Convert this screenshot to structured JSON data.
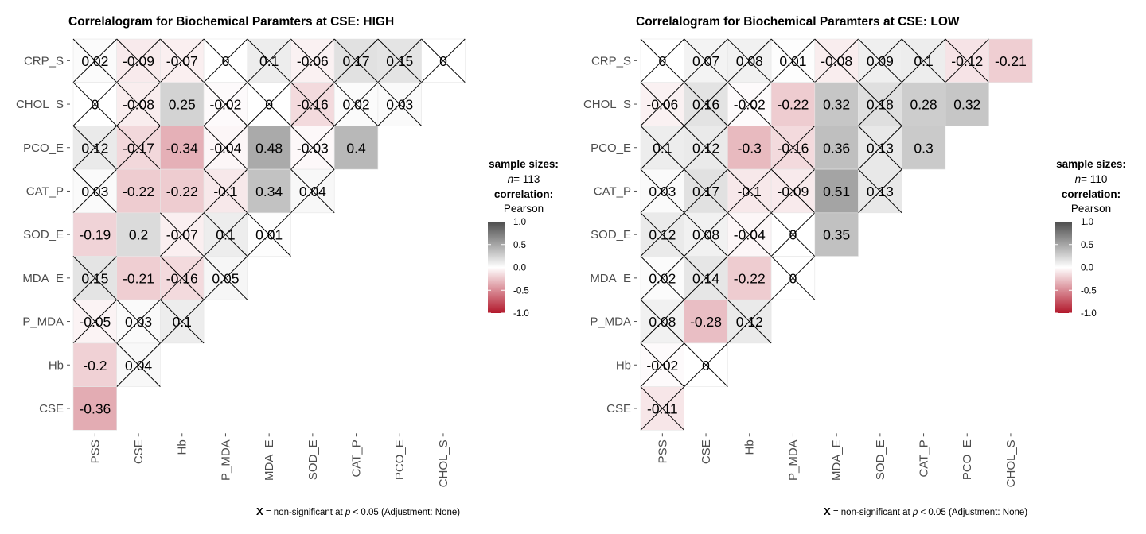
{
  "chart_data": [
    {
      "type": "heatmap",
      "title": "Correlalogram for Biochemical Paramters at CSE: HIGH",
      "rows": [
        "CRP_S",
        "CHOL_S",
        "PCO_E",
        "CAT_P",
        "SOD_E",
        "MDA_E",
        "P_MDA",
        "Hb",
        "CSE"
      ],
      "columns": [
        "PSS",
        "CSE",
        "Hb",
        "P_MDA",
        "MDA_E",
        "SOD_E",
        "CAT_P",
        "PCO_E",
        "CHOL_S"
      ],
      "values": [
        [
          "0.02",
          "-0.09",
          "-0.07",
          "0",
          "0.1",
          "-0.06",
          "0.17",
          "0.15",
          "0"
        ],
        [
          "0",
          "-0.08",
          "0.25",
          "-0.02",
          "0",
          "-0.16",
          "0.02",
          "0.03"
        ],
        [
          "0.12",
          "-0.17",
          "-0.34",
          "-0.04",
          "0.48",
          "-0.03",
          "0.4"
        ],
        [
          "0.03",
          "-0.22",
          "-0.22",
          "-0.1",
          "0.34",
          "0.04"
        ],
        [
          "-0.19",
          "0.2",
          "-0.07",
          "0.1",
          "0.01"
        ],
        [
          "0.15",
          "-0.21",
          "-0.16",
          "0.05"
        ],
        [
          "-0.05",
          "0.03",
          "0.1"
        ],
        [
          "-0.2",
          "0.04"
        ],
        [
          "-0.36"
        ]
      ],
      "significant": [
        [
          false,
          false,
          false,
          false,
          false,
          false,
          false,
          false,
          false
        ],
        [
          false,
          false,
          true,
          false,
          false,
          false,
          false,
          false
        ],
        [
          false,
          false,
          true,
          false,
          true,
          false,
          true
        ],
        [
          false,
          true,
          true,
          false,
          true,
          false
        ],
        [
          true,
          true,
          false,
          false,
          false
        ],
        [
          false,
          true,
          false,
          false
        ],
        [
          false,
          false,
          false
        ],
        [
          true,
          false
        ],
        [
          true
        ]
      ],
      "legend": {
        "sample_sizes_label": "sample sizes:",
        "n_symbol": "n",
        "n_text": "= 113",
        "correlation_label": "correlation:",
        "method": "Pearson",
        "ticks": [
          "1.0",
          "0.5",
          "0.0",
          "-0.5",
          "-1.0"
        ],
        "range": [
          -1,
          1
        ]
      },
      "caption": {
        "x_symbol": "X",
        "text1": " = non-significant at ",
        "p_symbol": "p",
        "text2": " < 0.05 (Adjustment: None)"
      }
    },
    {
      "type": "heatmap",
      "title": "Correlalogram for Biochemical Paramters at CSE: LOW",
      "rows": [
        "CRP_S",
        "CHOL_S",
        "PCO_E",
        "CAT_P",
        "SOD_E",
        "MDA_E",
        "P_MDA",
        "Hb",
        "CSE"
      ],
      "columns": [
        "PSS",
        "CSE",
        "Hb",
        "P_MDA",
        "MDA_E",
        "SOD_E",
        "CAT_P",
        "PCO_E",
        "CHOL_S"
      ],
      "values": [
        [
          "0",
          "0.07",
          "0.08",
          "0.01",
          "-0.08",
          "0.09",
          "0.1",
          "-0.12",
          "-0.21"
        ],
        [
          "-0.06",
          "0.16",
          "-0.02",
          "-0.22",
          "0.32",
          "0.18",
          "0.28",
          "0.32"
        ],
        [
          "0.1",
          "0.12",
          "-0.3",
          "-0.16",
          "0.36",
          "0.13",
          "0.3"
        ],
        [
          "0.03",
          "0.17",
          "-0.1",
          "-0.09",
          "0.51",
          "0.13"
        ],
        [
          "0.12",
          "0.08",
          "-0.04",
          "0",
          "0.35"
        ],
        [
          "0.02",
          "0.14",
          "-0.22",
          "0"
        ],
        [
          "0.08",
          "-0.28",
          "0.12"
        ],
        [
          "-0.02",
          "0"
        ],
        [
          "-0.11"
        ]
      ],
      "significant": [
        [
          false,
          false,
          false,
          false,
          false,
          false,
          false,
          false,
          true
        ],
        [
          false,
          false,
          false,
          true,
          true,
          false,
          true,
          true
        ],
        [
          false,
          false,
          true,
          false,
          true,
          false,
          true
        ],
        [
          false,
          false,
          false,
          false,
          true,
          false
        ],
        [
          false,
          false,
          false,
          false,
          true
        ],
        [
          false,
          false,
          true,
          false
        ],
        [
          false,
          true,
          false
        ],
        [
          false,
          false
        ],
        [
          false
        ]
      ],
      "legend": {
        "sample_sizes_label": "sample sizes:",
        "n_symbol": "n",
        "n_text": "= 110",
        "correlation_label": "correlation:",
        "method": "Pearson",
        "ticks": [
          "1.0",
          "0.5",
          "0.0",
          "-0.5",
          "-1.0"
        ],
        "range": [
          -1,
          1
        ]
      },
      "caption": {
        "x_symbol": "X",
        "text1": " = non-significant at ",
        "p_symbol": "p",
        "text2": " < 0.05 (Adjustment: None)"
      }
    }
  ],
  "colors": {
    "high": "#4d4d4d",
    "mid": "#ffffff",
    "low": "#b2182b"
  }
}
